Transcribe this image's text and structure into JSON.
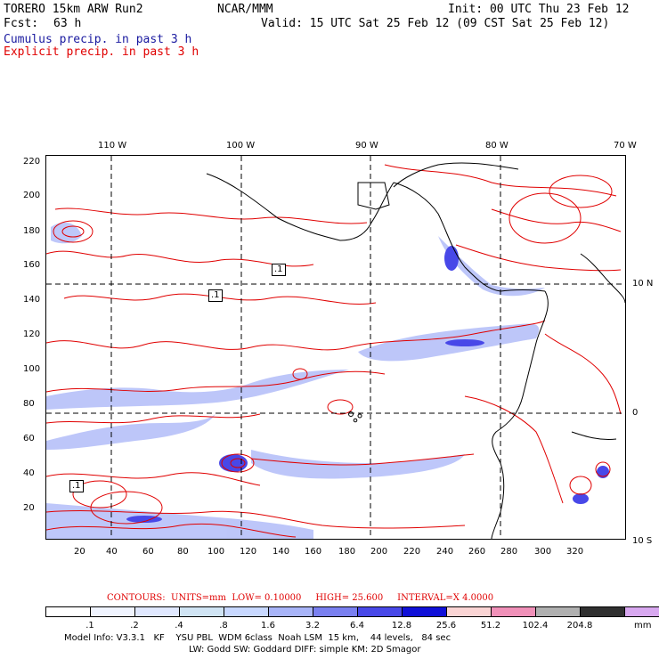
{
  "header": {
    "model": "TORERO 15km ARW Run2",
    "org": "NCAR/MMM",
    "init": "Init: 00 UTC Thu 23 Feb 12",
    "fcst_label": "Fcst:",
    "fcst_value": "63 h",
    "valid": "Valid: 15 UTC Sat 25 Feb 12 (09 CST Sat 25 Feb 12)",
    "line_cumulus": "Cumulus precip. in past 3 h",
    "line_explicit": "Explicit precip. in past 3 h"
  },
  "colors": {
    "cumulus": "#1a1aa0",
    "explicit": "#e00000",
    "coast": "#000000"
  },
  "axes": {
    "top_lon_labels": [
      "110 W",
      "100 W",
      "90 W",
      "80 W",
      "70 W"
    ],
    "right_lat_labels": [
      "10 N",
      "0",
      "10 S"
    ],
    "left_y_ticks": [
      "220",
      "200",
      "180",
      "160",
      "140",
      "120",
      "100",
      "80",
      "60",
      "40",
      "20"
    ],
    "bottom_x_ticks": [
      "20",
      "40",
      "60",
      "80",
      "100",
      "120",
      "140",
      "160",
      "180",
      "200",
      "220",
      "240",
      "260",
      "280",
      "300",
      "320"
    ]
  },
  "map_labels": {
    "low_label": ".1"
  },
  "contours": {
    "prefix": "CONTOURS:",
    "units": "UNITS=mm",
    "low": "LOW= 0.10000",
    "high": "HIGH= 25.600",
    "interval": "INTERVAL=X 4.0000"
  },
  "colorbar": {
    "unit": "mm",
    "labels": [
      ".1",
      ".2",
      ".4",
      ".8",
      "1.6",
      "3.2",
      "6.4",
      "12.8",
      "25.6",
      "51.2",
      "102.4",
      "204.8"
    ],
    "colors": [
      "#ffffff",
      "#f0f4ff",
      "#e0e8ff",
      "#d0e4f4",
      "#c8d8ff",
      "#a8b4f8",
      "#7a80f0",
      "#4848e8",
      "#1010d8",
      "#fad4d4",
      "#f090b8",
      "#b0b0b0",
      "#303030",
      "#d8a8f0"
    ]
  },
  "footer": {
    "line1": "Model Info: V3.3.1   KF    YSU PBL  WDM 6class  Noah LSM  15 km,    44 levels,   84 sec",
    "line2": "LW: Godd SW: Goddard DIFF: simple KM: 2D Smagor"
  }
}
